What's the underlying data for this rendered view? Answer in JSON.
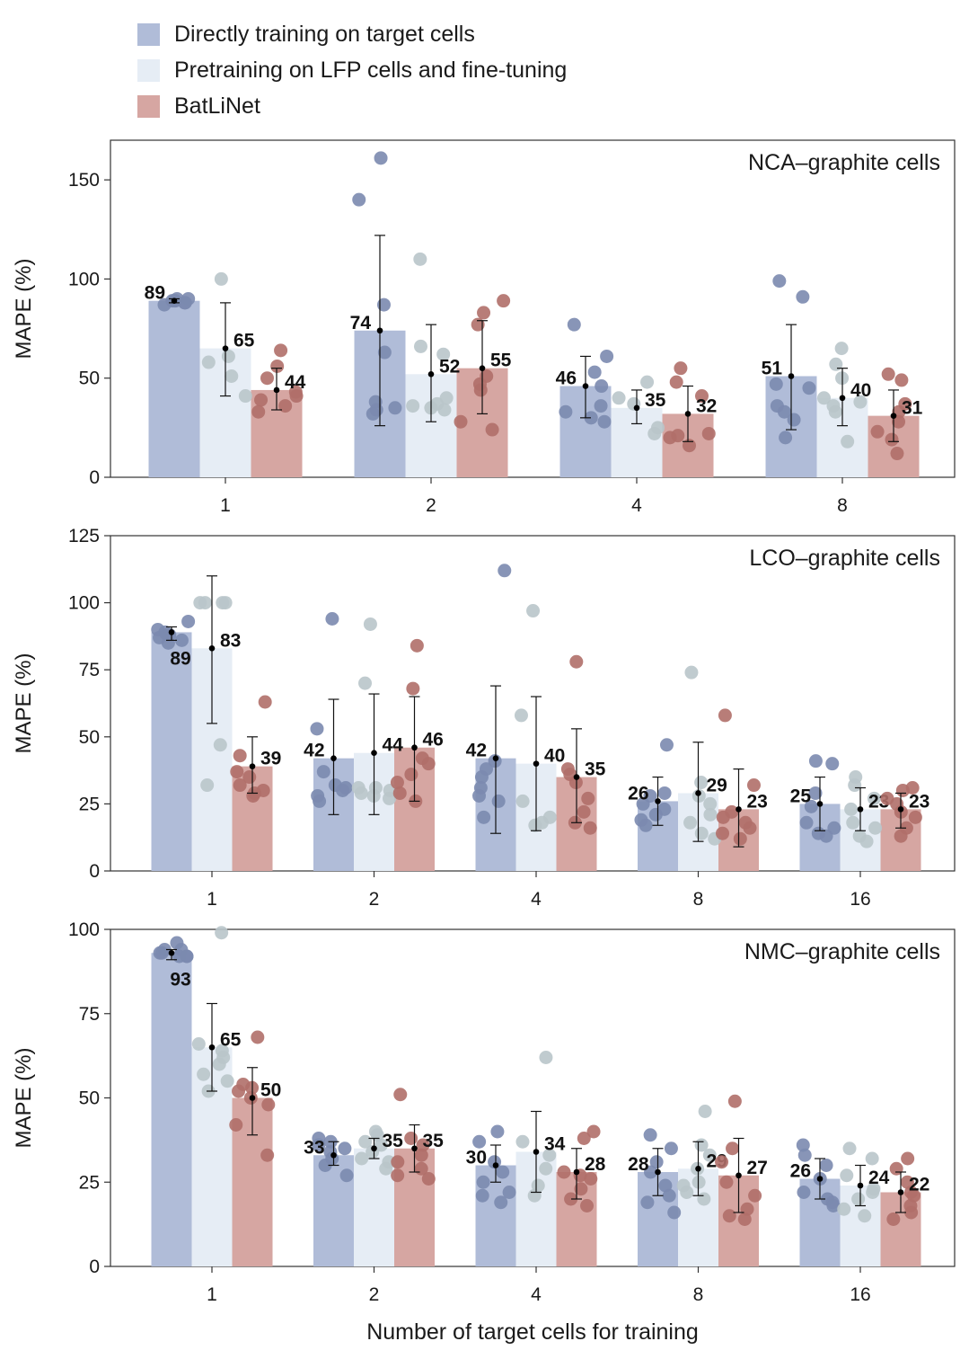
{
  "legend": [
    {
      "label": "Directly training on target cells",
      "color": "#b0bcd8"
    },
    {
      "label": "Pretraining on LFP cells and fine-tuning",
      "color": "#e6edf5"
    },
    {
      "label": "BatLiNet",
      "color": "#d6a6a2"
    }
  ],
  "colors": {
    "direct_bar": "#b0bcd8",
    "direct_dot": "#7b8aaf",
    "pretrain_bar": "#e6edf5",
    "pretrain_dot": "#b9c5ca",
    "batlinet_bar": "#d6a6a2",
    "batlinet_dot": "#b06f69"
  },
  "chart_data": [
    {
      "type": "bar",
      "title": "NCA–graphite cells",
      "ylabel": "MAPE (%)",
      "xlabel": "",
      "categories": [
        "1",
        "2",
        "4",
        "8"
      ],
      "ylim": [
        0,
        170
      ],
      "yticks": [
        0,
        50,
        100,
        150
      ],
      "grid": false,
      "series": [
        {
          "name": "Directly training on target cells",
          "values": [
            89,
            74,
            46,
            51
          ],
          "errors": [
            [
              88,
              90
            ],
            [
              26,
              122
            ],
            [
              30,
              61
            ],
            [
              24,
              77
            ]
          ],
          "points": [
            [
              88,
              90,
              89,
              87,
              90,
              88,
              89,
              89
            ],
            [
              161,
              140,
              87,
              63,
              38,
              35,
              32,
              34
            ],
            [
              77,
              61,
              53,
              46,
              36,
              33,
              30,
              28
            ],
            [
              99,
              91,
              47,
              45,
              36,
              33,
              29,
              20
            ]
          ]
        },
        {
          "name": "Pretraining on LFP cells and fine-tuning",
          "values": [
            65,
            52,
            35,
            40
          ],
          "errors": [
            [
              41,
              88
            ],
            [
              28,
              77
            ],
            [
              27,
              44
            ],
            [
              26,
              55
            ]
          ],
          "points": [
            [
              100,
              61,
              58,
              51,
              41
            ],
            [
              110,
              66,
              62,
              40,
              37,
              36,
              35,
              34
            ],
            [
              48,
              40,
              37,
              25,
              22
            ],
            [
              65,
              57,
              50,
              40,
              38,
              36,
              33,
              18
            ]
          ]
        },
        {
          "name": "BatLiNet",
          "values": [
            44,
            55,
            32,
            31
          ],
          "errors": [
            [
              34,
              55
            ],
            [
              32,
              79
            ],
            [
              18,
              46
            ],
            [
              18,
              44
            ]
          ],
          "points": [
            [
              64,
              56,
              50,
              43,
              41,
              39,
              36,
              33
            ],
            [
              89,
              83,
              77,
              51,
              47,
              44,
              28,
              24
            ],
            [
              55,
              48,
              41,
              22,
              21,
              20,
              16
            ],
            [
              52,
              49,
              37,
              33,
              28,
              23,
              19,
              12
            ]
          ]
        }
      ],
      "data_labels": [
        [
          "89",
          "74",
          "46",
          "51"
        ],
        [
          "65",
          "52",
          "35",
          "40"
        ],
        [
          "44",
          "55",
          "32",
          "31"
        ]
      ]
    },
    {
      "type": "bar",
      "title": "LCO–graphite cells",
      "ylabel": "MAPE (%)",
      "xlabel": "",
      "categories": [
        "1",
        "2",
        "4",
        "8",
        "16"
      ],
      "ylim": [
        0,
        125
      ],
      "yticks": [
        0,
        25,
        50,
        75,
        100,
        125
      ],
      "grid": false,
      "series": [
        {
          "name": "Directly training on target cells",
          "values": [
            89,
            42,
            42,
            26,
            25
          ],
          "errors": [
            [
              86,
              91
            ],
            [
              21,
              64
            ],
            [
              14,
              69
            ],
            [
              17,
              35
            ],
            [
              15,
              35
            ]
          ],
          "points": [
            [
              93,
              90,
              88,
              86,
              85,
              89,
              87,
              88
            ],
            [
              94,
              53,
              37,
              32,
              31,
              30,
              28,
              26
            ],
            [
              112,
              41,
              38,
              35,
              31,
              28,
              26,
              20
            ],
            [
              47,
              29,
              28,
              25,
              23,
              21,
              19,
              17
            ],
            [
              41,
              40,
              29,
              24,
              18,
              16,
              14,
              13
            ]
          ]
        },
        {
          "name": "Pretraining on LFP cells and fine-tuning",
          "values": [
            83,
            44,
            40,
            29,
            23
          ],
          "errors": [
            [
              55,
              110
            ],
            [
              21,
              66
            ],
            [
              15,
              65
            ],
            [
              11,
              48
            ],
            [
              15,
              31
            ]
          ],
          "points": [
            [
              100,
              100,
              100,
              100,
              47,
              32
            ],
            [
              92,
              70,
              31,
              31,
              30,
              29,
              28,
              27
            ],
            [
              97,
              58,
              26,
              20,
              18,
              17
            ],
            [
              74,
              33,
              28,
              25,
              21,
              18,
              14,
              12
            ],
            [
              35,
              32,
              27,
              23,
              18,
              16,
              13,
              11
            ]
          ]
        },
        {
          "name": "BatLiNet",
          "values": [
            39,
            46,
            35,
            23,
            23
          ],
          "errors": [
            [
              29,
              50
            ],
            [
              26,
              65
            ],
            [
              18,
              53
            ],
            [
              9,
              38
            ],
            [
              16,
              29
            ]
          ],
          "points": [
            [
              63,
              43,
              37,
              35,
              32,
              30,
              28,
              29
            ],
            [
              84,
              68,
              42,
              40,
              36,
              33,
              29,
              26
            ],
            [
              78,
              38,
              36,
              33,
              27,
              22,
              18,
              16
            ],
            [
              58,
              32,
              22,
              20,
              18,
              16,
              14,
              12
            ],
            [
              31,
              30,
              27,
              25,
              22,
              20,
              16,
              13
            ]
          ]
        }
      ],
      "data_labels": [
        [
          "89",
          "42",
          "42",
          "26",
          "25"
        ],
        [
          "83",
          "44",
          "40",
          "29",
          "23"
        ],
        [
          "39",
          "46",
          "35",
          "23",
          "23"
        ]
      ]
    },
    {
      "type": "bar",
      "title": "NMC–graphite cells",
      "ylabel": "MAPE (%)",
      "xlabel": "Number of target cells for training",
      "categories": [
        "1",
        "2",
        "4",
        "8",
        "16"
      ],
      "ylim": [
        0,
        100
      ],
      "yticks": [
        0,
        25,
        50,
        75,
        100
      ],
      "grid": false,
      "series": [
        {
          "name": "Directly training on target cells",
          "values": [
            93,
            33,
            30,
            28,
            26
          ],
          "errors": [
            [
              91,
              94
            ],
            [
              30,
              37
            ],
            [
              25,
              36
            ],
            [
              21,
              35
            ],
            [
              20,
              32
            ]
          ],
          "points": [
            [
              96,
              94,
              93,
              92,
              92,
              93,
              94,
              92
            ],
            [
              38,
              37,
              36,
              35,
              34,
              32,
              30,
              27
            ],
            [
              40,
              37,
              31,
              28,
              25,
              22,
              21,
              19
            ],
            [
              39,
              35,
              31,
              28,
              24,
              21,
              19,
              16
            ],
            [
              36,
              33,
              30,
              26,
              22,
              20,
              19,
              18
            ]
          ]
        },
        {
          "name": "Pretraining on LFP cells and fine-tuning",
          "values": [
            65,
            35,
            34,
            29,
            24
          ],
          "errors": [
            [
              52,
              78
            ],
            [
              32,
              38
            ],
            [
              22,
              46
            ],
            [
              21,
              37
            ],
            [
              18,
              30
            ]
          ],
          "points": [
            [
              99,
              66,
              64,
              62,
              60,
              57,
              55,
              52
            ],
            [
              40,
              39,
              37,
              36,
              34,
              32,
              31,
              29
            ],
            [
              62,
              37,
              33,
              29,
              24,
              21
            ],
            [
              46,
              36,
              33,
              29,
              25,
              24,
              22,
              20
            ],
            [
              35,
              32,
              27,
              23,
              22,
              20,
              17,
              15
            ]
          ]
        },
        {
          "name": "BatLiNet",
          "values": [
            50,
            35,
            28,
            27,
            22
          ],
          "errors": [
            [
              39,
              59
            ],
            [
              28,
              42
            ],
            [
              20,
              35
            ],
            [
              16,
              38
            ],
            [
              16,
              28
            ]
          ],
          "points": [
            [
              68,
              54,
              53,
              52,
              50,
              48,
              42,
              33
            ],
            [
              51,
              38,
              36,
              33,
              31,
              29,
              27,
              26
            ],
            [
              40,
              38,
              28,
              27,
              26,
              23,
              20,
              18
            ],
            [
              49,
              35,
              31,
              25,
              21,
              17,
              15,
              14
            ],
            [
              32,
              29,
              25,
              22,
              21,
              18,
              16,
              14
            ]
          ]
        }
      ],
      "data_labels": [
        [
          "93",
          "33",
          "30",
          "28",
          "26"
        ],
        [
          "65",
          "35",
          "34",
          "29",
          "24"
        ],
        [
          "50",
          "35",
          "28",
          "27",
          "22"
        ]
      ]
    }
  ]
}
